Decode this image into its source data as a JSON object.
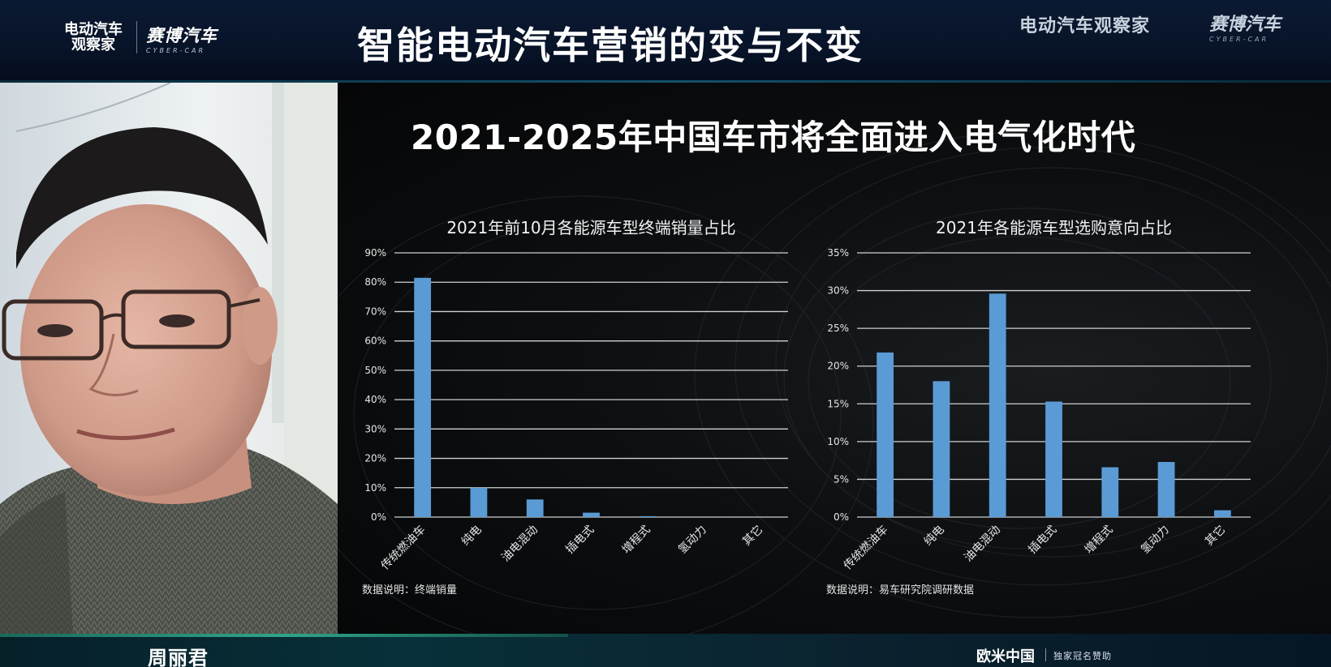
{
  "banner": {
    "brand_left_line1": "电动汽车",
    "brand_left_line2": "观察家",
    "brand_cyber_cn": "赛博汽车",
    "brand_cyber_en": "CYBER-CAR",
    "title": "智能电动汽车营销的变与不变",
    "brand_right_ev": "电动汽车观察家",
    "brand_right_cyber_cn": "赛博汽车",
    "brand_right_cyber_en": "CYBER-CAR"
  },
  "slide": {
    "title": "2021-2025年中国车市将全面进入电气化时代"
  },
  "chart_data": [
    {
      "type": "bar",
      "title": "2021年前10月各能源车型终端销量占比",
      "categories": [
        "传统燃油车",
        "纯电",
        "油电混动",
        "插电式",
        "增程式",
        "氢动力",
        "其它"
      ],
      "values": [
        81.5,
        10,
        6,
        1.5,
        0.3,
        0,
        0
      ],
      "unit": "%",
      "ylim": [
        0,
        90
      ],
      "yticks": [
        "0%",
        "10%",
        "20%",
        "30%",
        "40%",
        "50%",
        "60%",
        "70%",
        "80%",
        "90%"
      ],
      "grid": true,
      "bar_color": "#5b9bd5",
      "note": "数据说明：终端销量"
    },
    {
      "type": "bar",
      "title": "2021年各能源车型选购意向占比",
      "categories": [
        "传统燃油车",
        "纯电",
        "油电混动",
        "插电式",
        "增程式",
        "氢动力",
        "其它"
      ],
      "values": [
        21.8,
        18,
        29.6,
        15.3,
        6.6,
        7.3,
        0.9
      ],
      "unit": "%",
      "ylim": [
        0,
        35
      ],
      "yticks": [
        "0%",
        "5%",
        "10%",
        "15%",
        "20%",
        "25%",
        "30%",
        "35%"
      ],
      "grid": true,
      "bar_color": "#5b9bd5",
      "note": "数据说明：易车研究院调研数据"
    }
  ],
  "footer": {
    "speaker": "周丽君",
    "sponsor": "欧米中国",
    "sponsor_label": "独家冠名赞助"
  }
}
